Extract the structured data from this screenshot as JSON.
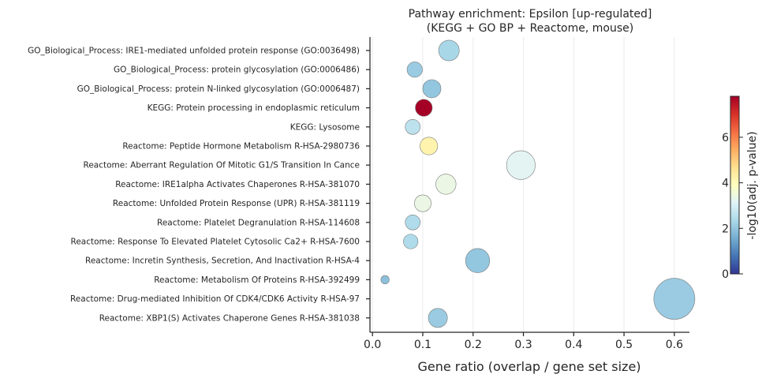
{
  "chart_data": {
    "type": "scatter",
    "title": "Pathway enrichment: Epsilon  [up-regulated]",
    "subtitle": "(KEGG + GO BP + Reactome, mouse)",
    "xlabel": "Gene ratio (overlap / gene set size)",
    "ylabel": "",
    "xlim": [
      -0.005,
      0.63
    ],
    "xticks": [
      0.0,
      0.1,
      0.2,
      0.3,
      0.4,
      0.5,
      0.6
    ],
    "xtick_labels": [
      "0.0",
      "0.1",
      "0.2",
      "0.3",
      "0.4",
      "0.5",
      "0.6"
    ],
    "grid": "vertical",
    "colorbar": {
      "label": "-log10(adj. p-value)",
      "min": 0,
      "max": 7.8,
      "ticks": [
        0,
        2,
        4,
        6
      ],
      "tick_labels": [
        "0",
        "2",
        "4",
        "6"
      ],
      "colormap": "RdYlBu_r"
    },
    "categories": [
      "GO_Biological_Process: IRE1-mediated unfolded protein response (GO:0036498)",
      "GO_Biological_Process: protein glycosylation (GO:0006486)",
      "GO_Biological_Process: protein N-linked glycosylation (GO:0006487)",
      "KEGG: Protein processing in endoplasmic reticulum",
      "KEGG: Lysosome",
      "Reactome: Peptide Hormone Metabolism R-HSA-2980736",
      "Reactome: Aberrant Regulation Of Mitotic G1/S Transition In Cance",
      "Reactome: IRE1alpha Activates Chaperones R-HSA-381070",
      "Reactome: Unfolded Protein Response (UPR) R-HSA-381119",
      "Reactome: Platelet Degranulation R-HSA-114608",
      "Reactome: Response To Elevated Platelet Cytosolic Ca2+ R-HSA-7600",
      "Reactome: Incretin Synthesis, Secretion, And Inactivation R-HSA-4",
      "Reactome: Metabolism Of Proteins R-HSA-392499",
      "Reactome: Drug-mediated Inhibition Of CDK4/CDK6 Activity R-HSA-97",
      "Reactome: XBP1(S) Activates Chaperone Genes R-HSA-381038"
    ],
    "points": [
      {
        "x": 0.152,
        "neglog10p": 2.3,
        "size": 0.152
      },
      {
        "x": 0.084,
        "neglog10p": 2.1,
        "size": 0.084
      },
      {
        "x": 0.118,
        "neglog10p": 2.0,
        "size": 0.118
      },
      {
        "x": 0.102,
        "neglog10p": 7.8,
        "size": 0.102
      },
      {
        "x": 0.08,
        "neglog10p": 2.6,
        "size": 0.08
      },
      {
        "x": 0.112,
        "neglog10p": 4.2,
        "size": 0.112
      },
      {
        "x": 0.295,
        "neglog10p": 3.2,
        "size": 0.295
      },
      {
        "x": 0.146,
        "neglog10p": 3.4,
        "size": 0.146
      },
      {
        "x": 0.1,
        "neglog10p": 3.4,
        "size": 0.1
      },
      {
        "x": 0.08,
        "neglog10p": 2.4,
        "size": 0.08
      },
      {
        "x": 0.076,
        "neglog10p": 2.4,
        "size": 0.076
      },
      {
        "x": 0.209,
        "neglog10p": 2.0,
        "size": 0.209
      },
      {
        "x": 0.025,
        "neglog10p": 1.9,
        "size": 0.025
      },
      {
        "x": 0.6,
        "neglog10p": 2.1,
        "size": 0.6
      },
      {
        "x": 0.13,
        "neglog10p": 2.1,
        "size": 0.13
      }
    ]
  }
}
